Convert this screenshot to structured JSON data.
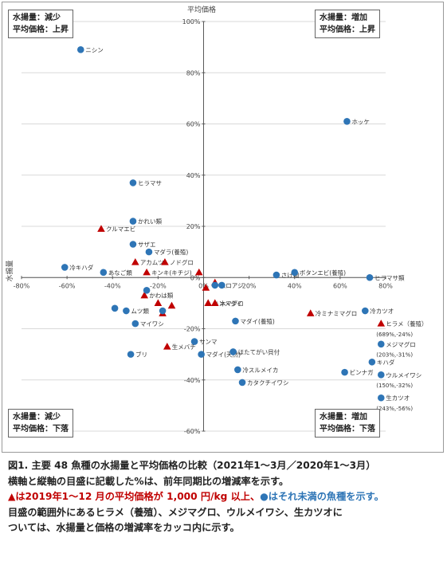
{
  "chart_data": {
    "type": "scatter",
    "xlabel": "水揚量",
    "ylabel": "平均価格",
    "xlim": [
      -80,
      80
    ],
    "ylim": [
      -60,
      100
    ],
    "x_ticks": [
      "-80%",
      "-60%",
      "-40%",
      "-20%",
      "0%",
      "20%",
      "40%",
      "60%",
      "80%"
    ],
    "y_ticks": [
      "100%",
      "80%",
      "60%",
      "40%",
      "20%",
      "0%",
      "-20%",
      "-40%",
      "-60%"
    ],
    "quadrants": {
      "top_left": [
        "水揚量：減少",
        "平均価格：上昇"
      ],
      "top_right": [
        "水揚量：増加",
        "平均価格：上昇"
      ],
      "bottom_left": [
        "水揚量：減少",
        "平均価格：下落"
      ],
      "bottom_right": [
        "水揚量：増加",
        "平均価格：下落"
      ]
    },
    "series": [
      {
        "marker": "triangle",
        "color": "#c00000",
        "points": [
          {
            "label": "クルマエビ",
            "x": -45,
            "y": 19
          },
          {
            "label": "アカムツ",
            "x": -30,
            "y": 6
          },
          {
            "label": "ノドグロ",
            "x": -17,
            "y": 6
          },
          {
            "label": "キンキ(キチジ)",
            "x": -25,
            "y": 2
          },
          {
            "label": "",
            "x": -2,
            "y": 2
          },
          {
            "label": "",
            "x": 5,
            "y": -2
          },
          {
            "label": "",
            "x": 1,
            "y": -4
          },
          {
            "label": "かわは類",
            "x": -26,
            "y": -7
          },
          {
            "label": "",
            "x": -20,
            "y": -10
          },
          {
            "label": "",
            "x": -14,
            "y": -11
          },
          {
            "label": "",
            "x": -18,
            "y": -14
          },
          {
            "label": "キンメダイ",
            "x": 2,
            "y": -10
          },
          {
            "label": "本マグロ",
            "x": 5,
            "y": -10
          },
          {
            "label": "冷ミナミマグロ",
            "x": 47,
            "y": -14
          },
          {
            "label": "生メバチ",
            "x": -16,
            "y": -27
          },
          {
            "label": "ヒラメ（養殖）",
            "x": 78,
            "y": -18
          }
        ]
      },
      {
        "marker": "circle",
        "color": "#2e75b6",
        "points": [
          {
            "label": "ニシン",
            "x": -54,
            "y": 89
          },
          {
            "label": "ホッケ",
            "x": 63,
            "y": 61
          },
          {
            "label": "ヒラマサ",
            "x": -31,
            "y": 37
          },
          {
            "label": "かれい類",
            "x": -31,
            "y": 22
          },
          {
            "label": "サザエ",
            "x": -31,
            "y": 13
          },
          {
            "label": "マダラ(養殖)",
            "x": -24,
            "y": 10
          },
          {
            "label": "冷キハダ",
            "x": -61,
            "y": 4
          },
          {
            "label": "あなご類",
            "x": -44,
            "y": 2
          },
          {
            "label": "さけ類",
            "x": 32,
            "y": 1
          },
          {
            "label": "ボタンエビ(養殖)",
            "x": 40,
            "y": 2
          },
          {
            "label": "ヒラマサ類",
            "x": 73,
            "y": 0
          },
          {
            "label": "",
            "x": -25,
            "y": -5
          },
          {
            "label": "ムロアジ",
            "x": 5,
            "y": -3
          },
          {
            "label": "",
            "x": 8,
            "y": -3
          },
          {
            "label": "冷カツオ",
            "x": 71,
            "y": -13
          },
          {
            "label": "",
            "x": -39,
            "y": -12
          },
          {
            "label": "ムツ類",
            "x": -34,
            "y": -13
          },
          {
            "label": "",
            "x": -18,
            "y": -13
          },
          {
            "label": "マイワシ",
            "x": -30,
            "y": -18
          },
          {
            "label": "マダイ(養殖)",
            "x": 14,
            "y": -17
          },
          {
            "label": "サンマ",
            "x": -4,
            "y": -25
          },
          {
            "label": "ブリ",
            "x": -32,
            "y": -30
          },
          {
            "label": "マダイ(天然)",
            "x": -1,
            "y": -30
          },
          {
            "label": "ほたてがい貝付",
            "x": 13,
            "y": -29
          },
          {
            "label": "冷スルメイカ",
            "x": 15,
            "y": -36
          },
          {
            "label": "カタクチイワシ",
            "x": 17,
            "y": -41
          },
          {
            "label": "ビンナガ",
            "x": 62,
            "y": -37
          },
          {
            "label": "キハダ",
            "x": 74,
            "y": -33
          },
          {
            "label": "メジマグロ",
            "x": 78,
            "y": -26
          },
          {
            "label": "ウルメイワシ",
            "x": 78,
            "y": -38
          },
          {
            "label": "生カツオ",
            "x": 78,
            "y": -47
          }
        ]
      }
    ],
    "annotations": [
      {
        "label": "(689%,-24%)",
        "x": 78,
        "y": -22
      },
      {
        "label": "(203%,-31%)",
        "x": 78,
        "y": -30
      },
      {
        "label": "(150%,-32%)",
        "x": 78,
        "y": -42
      },
      {
        "label": "(243%,-56%)",
        "x": 78,
        "y": -51
      }
    ]
  },
  "caption": {
    "line1": "図1.  主要 48 魚種の水揚量と平均価格の比較（2021年1～3月／2020年1～3月）",
    "line2": "横軸と縦軸の目盛に記載した%は、前年同期比の増減率を示す。",
    "line3_red": "▲は2019年1～12 月の平均価格が 1,000 円/kg 以上、",
    "line3_blue": "●はそれ未満の魚種を示す。",
    "line4": "目盛の範囲外にあるヒラメ（養殖）、メジマグロ、ウルメイワシ、生カツオに",
    "line5": "ついては、水揚量と価格の増減率をカッコ内に示す。"
  }
}
